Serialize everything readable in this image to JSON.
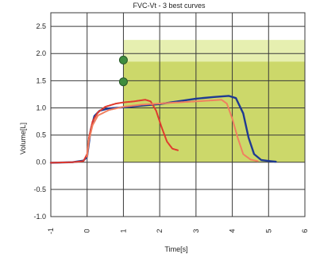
{
  "chart_data": {
    "type": "line",
    "title": "FVC-Vt - 3 best curves",
    "xlabel": "Time[s]",
    "ylabel": "Volume[L]",
    "xlim": [
      -1,
      6
    ],
    "ylim": [
      -1.0,
      2.75
    ],
    "x_ticks": [
      "-1",
      "0",
      "1",
      "2",
      "3",
      "4",
      "5",
      "6"
    ],
    "y_ticks": [
      "-1.0",
      "-0.5",
      "0.0",
      "0.5",
      "1.0",
      "1.5",
      "2.0",
      "2.5"
    ],
    "grid": true,
    "colors": {
      "zone_light": "#e6efb0",
      "zone_dark": "#ccd86a",
      "grid": "#3a3a3a",
      "markers": "#3f8c3f"
    },
    "zones": [
      {
        "x": [
          1.0,
          6.0
        ],
        "y": [
          0.0,
          2.25
        ],
        "color": "zone_light"
      },
      {
        "x": [
          1.0,
          6.0
        ],
        "y": [
          0.0,
          1.85
        ],
        "color": "zone_dark"
      }
    ],
    "markers": [
      {
        "x": 1.0,
        "y": 1.88
      },
      {
        "x": 1.0,
        "y": 1.48
      }
    ],
    "series": [
      {
        "color": "#1f3a93",
        "points": [
          [
            -1.0,
            -0.01
          ],
          [
            -0.4,
            0.0
          ],
          [
            -0.1,
            0.03
          ],
          [
            0.0,
            0.1
          ],
          [
            0.05,
            0.35
          ],
          [
            0.1,
            0.6
          ],
          [
            0.2,
            0.85
          ],
          [
            0.35,
            0.95
          ],
          [
            0.6,
            0.99
          ],
          [
            1.0,
            1.01
          ],
          [
            1.5,
            1.04
          ],
          [
            2.0,
            1.07
          ],
          [
            2.5,
            1.12
          ],
          [
            3.0,
            1.17
          ],
          [
            3.5,
            1.2
          ],
          [
            3.9,
            1.22
          ],
          [
            4.1,
            1.18
          ],
          [
            4.3,
            0.9
          ],
          [
            4.45,
            0.45
          ],
          [
            4.6,
            0.15
          ],
          [
            4.8,
            0.04
          ],
          [
            5.05,
            0.02
          ],
          [
            5.2,
            0.01
          ]
        ]
      },
      {
        "color": "#e03a2e",
        "points": [
          [
            -1.0,
            -0.01
          ],
          [
            -0.4,
            0.0
          ],
          [
            -0.1,
            0.02
          ],
          [
            0.0,
            0.15
          ],
          [
            0.05,
            0.45
          ],
          [
            0.15,
            0.75
          ],
          [
            0.3,
            0.92
          ],
          [
            0.5,
            1.02
          ],
          [
            0.8,
            1.08
          ],
          [
            1.0,
            1.1
          ],
          [
            1.3,
            1.12
          ],
          [
            1.6,
            1.15
          ],
          [
            1.75,
            1.12
          ],
          [
            1.9,
            0.95
          ],
          [
            2.05,
            0.65
          ],
          [
            2.2,
            0.38
          ],
          [
            2.35,
            0.25
          ],
          [
            2.5,
            0.22
          ]
        ]
      },
      {
        "color": "#f08060",
        "points": [
          [
            0.0,
            0.1
          ],
          [
            0.05,
            0.4
          ],
          [
            0.15,
            0.68
          ],
          [
            0.3,
            0.86
          ],
          [
            0.6,
            0.96
          ],
          [
            1.0,
            1.02
          ],
          [
            1.5,
            1.06
          ],
          [
            2.0,
            1.08
          ],
          [
            2.5,
            1.1
          ],
          [
            3.0,
            1.12
          ],
          [
            3.5,
            1.14
          ],
          [
            3.7,
            1.15
          ],
          [
            3.85,
            1.08
          ],
          [
            4.0,
            0.8
          ],
          [
            4.15,
            0.45
          ],
          [
            4.3,
            0.15
          ],
          [
            4.5,
            0.05
          ],
          [
            4.7,
            0.02
          ]
        ]
      }
    ]
  }
}
